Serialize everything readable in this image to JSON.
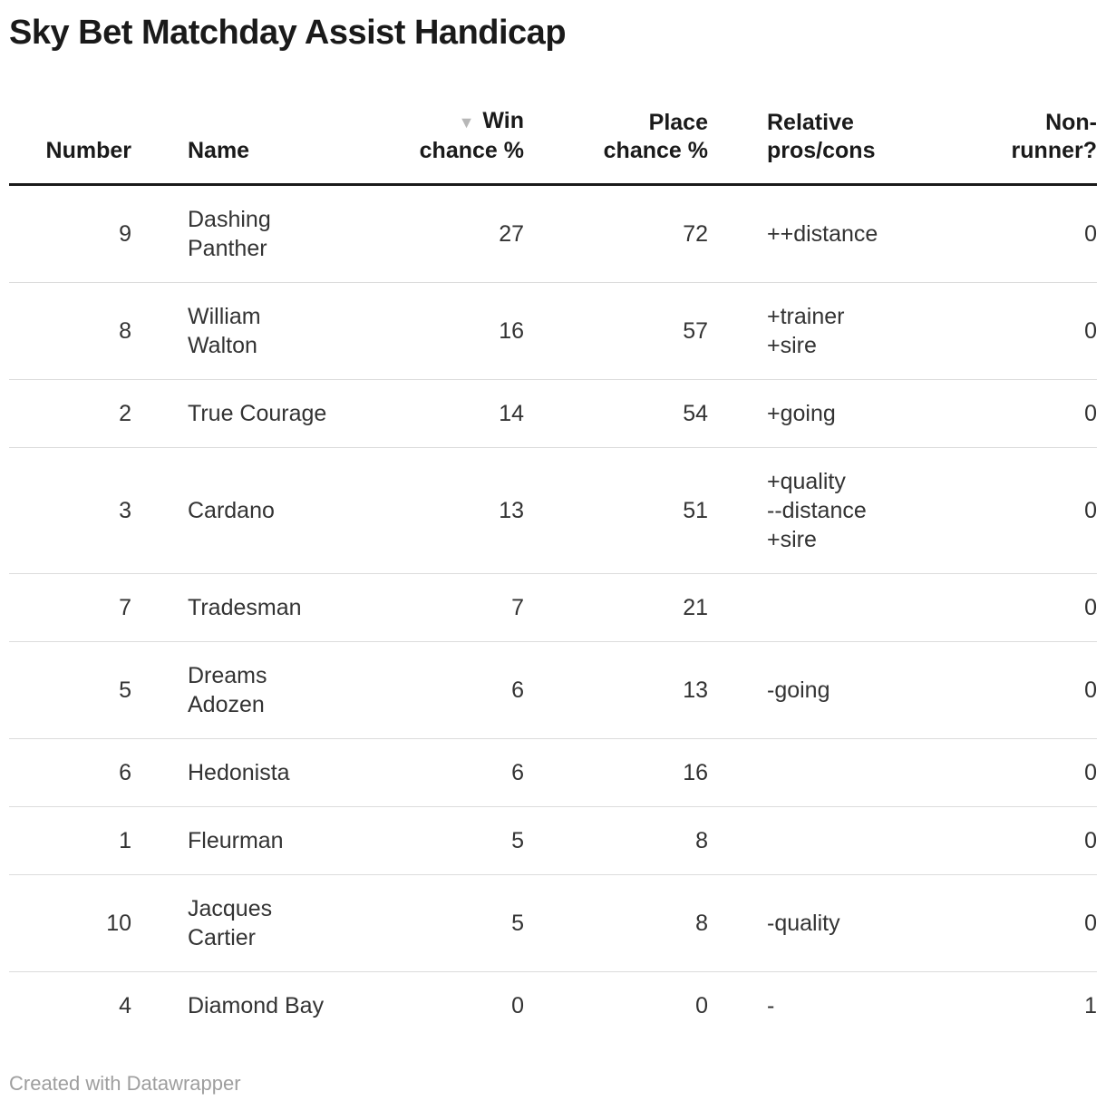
{
  "title": "Sky Bet Matchday Assist Handicap",
  "footer": "Created with Datawrapper",
  "sort_icon": "▼",
  "colors": {
    "text": "#333333",
    "heading": "#1a1a1a",
    "header_rule": "#1a1a1a",
    "row_separator": "#dcdcdc",
    "sort_arrow": "#b7b7b7",
    "attribution": "#9e9e9e",
    "background": "#ffffff"
  },
  "table": {
    "columns": [
      {
        "id": "number",
        "label": "Number",
        "lines": [
          "Number"
        ],
        "align": "right",
        "sorted": false
      },
      {
        "id": "name",
        "label": "Name",
        "lines": [
          "Name"
        ],
        "align": "left",
        "sorted": false
      },
      {
        "id": "win",
        "label": "Win chance %",
        "lines": [
          "Win",
          "chance %"
        ],
        "align": "right",
        "sorted": true
      },
      {
        "id": "place",
        "label": "Place chance %",
        "lines": [
          "Place",
          "chance %"
        ],
        "align": "right",
        "sorted": false
      },
      {
        "id": "pros",
        "label": "Relative pros/cons",
        "lines": [
          "Relative",
          "pros/cons"
        ],
        "align": "left",
        "sorted": false
      },
      {
        "id": "nonrunner",
        "label": "Non-runner?",
        "lines": [
          "Non-",
          "runner?"
        ],
        "align": "right",
        "sorted": false
      }
    ],
    "rows": [
      {
        "number": "9",
        "name": "Dashing\nPanther",
        "win": "27",
        "place": "72",
        "pros": "++distance",
        "nonrunner": "0"
      },
      {
        "number": "8",
        "name": "William\nWalton",
        "win": "16",
        "place": "57",
        "pros": "+trainer\n+sire",
        "nonrunner": "0"
      },
      {
        "number": "2",
        "name": "True Courage",
        "win": "14",
        "place": "54",
        "pros": "+going",
        "nonrunner": "0"
      },
      {
        "number": "3",
        "name": "Cardano",
        "win": "13",
        "place": "51",
        "pros": "+quality\n--distance\n+sire",
        "nonrunner": "0"
      },
      {
        "number": "7",
        "name": "Tradesman",
        "win": "7",
        "place": "21",
        "pros": "",
        "nonrunner": "0"
      },
      {
        "number": "5",
        "name": "Dreams\nAdozen",
        "win": "6",
        "place": "13",
        "pros": "-going",
        "nonrunner": "0"
      },
      {
        "number": "6",
        "name": "Hedonista",
        "win": "6",
        "place": "16",
        "pros": "",
        "nonrunner": "0"
      },
      {
        "number": "1",
        "name": "Fleurman",
        "win": "5",
        "place": "8",
        "pros": "",
        "nonrunner": "0"
      },
      {
        "number": "10",
        "name": "Jacques\nCartier",
        "win": "5",
        "place": "8",
        "pros": "-quality",
        "nonrunner": "0"
      },
      {
        "number": "4",
        "name": "Diamond Bay",
        "win": "0",
        "place": "0",
        "pros": "-",
        "nonrunner": "1"
      }
    ]
  },
  "chart_data": {
    "type": "table",
    "title": "Sky Bet Matchday Assist Handicap",
    "columns": [
      "Number",
      "Name",
      "Win chance %",
      "Place chance %",
      "Relative pros/cons",
      "Non-runner?"
    ],
    "rows": [
      [
        9,
        "Dashing Panther",
        27,
        72,
        "++distance",
        0
      ],
      [
        8,
        "William Walton",
        16,
        57,
        "+trainer +sire",
        0
      ],
      [
        2,
        "True Courage",
        14,
        54,
        "+going",
        0
      ],
      [
        3,
        "Cardano",
        13,
        51,
        "+quality --distance +sire",
        0
      ],
      [
        7,
        "Tradesman",
        7,
        21,
        "",
        0
      ],
      [
        5,
        "Dreams Adozen",
        6,
        13,
        "-going",
        0
      ],
      [
        6,
        "Hedonista",
        6,
        16,
        "",
        0
      ],
      [
        1,
        "Fleurman",
        5,
        8,
        "",
        0
      ],
      [
        10,
        "Jacques Cartier",
        5,
        8,
        "-quality",
        0
      ],
      [
        4,
        "Diamond Bay",
        0,
        0,
        "-",
        1
      ]
    ],
    "sorted_by": "Win chance %",
    "sort_order": "descending"
  }
}
